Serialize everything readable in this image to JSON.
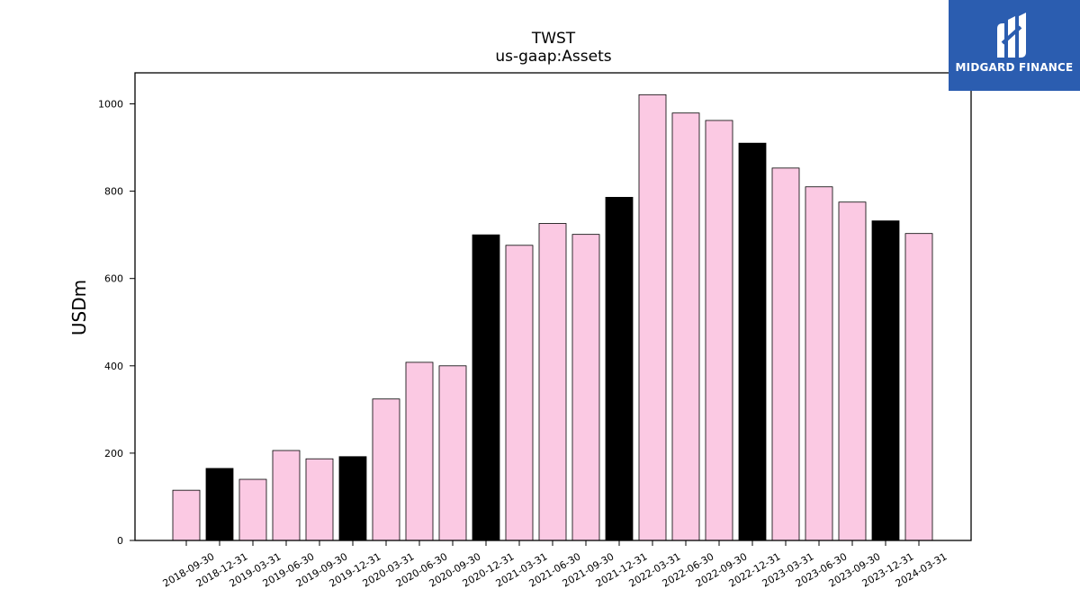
{
  "chart_data": {
    "type": "bar",
    "title": "TWST",
    "subtitle": "us-gaap:Assets",
    "ylabel": "USDm",
    "xlabel": "",
    "ylim": [
      0,
      1070
    ],
    "yticks": [
      0,
      200,
      400,
      600,
      800,
      1000
    ],
    "categories": [
      "2018-09-30",
      "2018-12-31",
      "2019-03-31",
      "2019-06-30",
      "2019-09-30",
      "2019-12-31",
      "2020-03-31",
      "2020-06-30",
      "2020-09-30",
      "2020-12-31",
      "2021-03-31",
      "2021-06-30",
      "2021-09-30",
      "2021-12-31",
      "2022-03-31",
      "2022-06-30",
      "2022-09-30",
      "2022-12-31",
      "2023-03-31",
      "2023-06-30",
      "2023-09-30",
      "2023-12-31",
      "2024-03-31"
    ],
    "values": [
      115,
      165,
      140,
      206,
      187,
      192,
      324,
      408,
      400,
      700,
      676,
      726,
      701,
      786,
      1021,
      979,
      962,
      910,
      853,
      810,
      775,
      732,
      703
    ],
    "highlight": [
      false,
      true,
      false,
      false,
      false,
      true,
      false,
      false,
      false,
      true,
      false,
      false,
      false,
      true,
      false,
      false,
      false,
      true,
      false,
      false,
      false,
      true,
      false
    ],
    "colors": {
      "regular": "#fbc9e3",
      "highlight": "#000000",
      "edge": "#000000"
    },
    "grid": false
  },
  "logo": {
    "text": "MIDGARD FINANCE",
    "color": "#2b5db0"
  }
}
